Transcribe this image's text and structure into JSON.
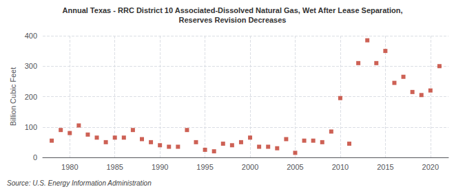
{
  "chart_data": {
    "type": "scatter",
    "title": "Annual Texas - RRC District 10 Associated-Dissolved Natural Gas, Wet After Lease Separation,",
    "subtitle": "Reserves Revision Decreases",
    "ylabel": "Billion Cubic Feet",
    "annotations": [
      "Source: U.S. Energy Information Administration"
    ],
    "x": [
      1978,
      1979,
      1980,
      1981,
      1982,
      1983,
      1984,
      1985,
      1986,
      1987,
      1988,
      1989,
      1990,
      1991,
      1992,
      1993,
      1994,
      1995,
      1996,
      1997,
      1998,
      1999,
      2000,
      2001,
      2002,
      2003,
      2004,
      2005,
      2006,
      2007,
      2008,
      2009,
      2010,
      2011,
      2012,
      2013,
      2014,
      2015,
      2016,
      2017,
      2018,
      2019,
      2020,
      2021
    ],
    "values": [
      55,
      90,
      80,
      105,
      75,
      65,
      50,
      65,
      65,
      90,
      60,
      50,
      40,
      35,
      35,
      90,
      50,
      25,
      20,
      45,
      40,
      50,
      65,
      35,
      35,
      30,
      60,
      15,
      55,
      55,
      50,
      85,
      195,
      45,
      310,
      385,
      310,
      350,
      245,
      265,
      215,
      205,
      220,
      300
    ],
    "color": "#c0392b",
    "marker": "square",
    "xlim": [
      1977,
      2022
    ],
    "xticks": [
      1980,
      1985,
      1990,
      1995,
      2000,
      2005,
      2010,
      2015,
      2020
    ],
    "ylim": [
      0,
      400
    ],
    "yticks": [
      0,
      100,
      200,
      300,
      400
    ],
    "grid": true
  }
}
